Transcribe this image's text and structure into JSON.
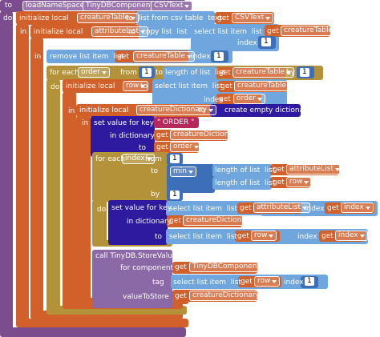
{
  "rows": [
    [
      "to",
      "loadNameSpace",
      "TinyDBComponent",
      "CSVText"
    ],
    [
      "do"
    ],
    [
      "initialize local",
      "creatureTable",
      "to",
      "list from csv table  text",
      "get",
      "CSVText"
    ],
    [
      "in"
    ],
    [
      "initialize local",
      "attributeList",
      "to",
      "copy list  list",
      "select list item  list",
      "get",
      "creatureTable",
      "index",
      1
    ],
    [
      "in"
    ],
    [
      "remove list item  list",
      "get",
      "creatureTable",
      "index",
      1
    ],
    [
      "for each",
      "order",
      "from",
      1,
      "to",
      "length of list  list",
      "get",
      "creatureTable",
      "by",
      1
    ],
    [
      "do",
      "initialize local",
      "row",
      "to",
      "select list item  list",
      "get",
      "creatureTable",
      "index",
      "get",
      "order"
    ],
    [
      "in",
      "initialize local",
      "creatureDictionary",
      "to",
      "create empty dictionary"
    ],
    [
      "in",
      "set value for key",
      "\" ORDER \"",
      "in dictionary",
      "get",
      "creatureDictionary",
      "to",
      "get",
      "order"
    ],
    [
      "for each",
      "index",
      "from",
      1,
      "to",
      "min",
      "length of list  list",
      "get",
      "attributeList",
      "length of list  list",
      "get",
      "row",
      "by",
      1
    ],
    [
      "do",
      "set value for key",
      "select list item  list",
      "get",
      "attributeList",
      "index",
      "get",
      "index",
      "in dictionary",
      "get",
      "creatureDictionary",
      "to",
      "select list item  list",
      "get",
      "row",
      "index",
      "get",
      "index"
    ],
    [
      "call TinyDB.StoreValue",
      "for component",
      "get",
      "TinyDBComponent",
      "tag",
      "select list item  list",
      "get",
      "row",
      "index",
      1,
      "valueToStore",
      "get",
      "creatureDictionary"
    ]
  ]
}
